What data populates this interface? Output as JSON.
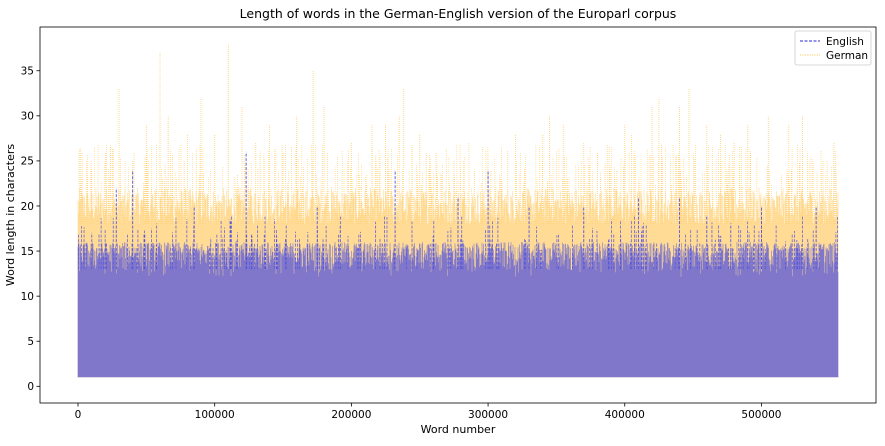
{
  "chart_data": {
    "type": "line",
    "title": "Length of words in the German-English version of the Europarl corpus",
    "xlabel": "Word number",
    "ylabel": "Word length in characters",
    "xlim": [
      -27800,
      583800
    ],
    "ylim": [
      -1.85,
      39.85
    ],
    "xticks": [
      0,
      100000,
      200000,
      300000,
      400000,
      500000
    ],
    "xtick_labels": [
      "0",
      "100000",
      "200000",
      "300000",
      "400000",
      "500000"
    ],
    "yticks": [
      0,
      5,
      10,
      15,
      20,
      25,
      30,
      35
    ],
    "ytick_labels": [
      "0",
      "5",
      "10",
      "15",
      "20",
      "25",
      "30",
      "35"
    ],
    "grid": false,
    "legend_position": "top-right",
    "x_range": [
      0,
      556000
    ],
    "series": [
      {
        "name": "German",
        "color": "#ffd582",
        "style": "dotted",
        "min": 1,
        "dense_band_top": 20,
        "peaks": [
          [
            3000,
            26
          ],
          [
            10000,
            24
          ],
          [
            20000,
            26
          ],
          [
            30000,
            33
          ],
          [
            40000,
            25
          ],
          [
            50000,
            29
          ],
          [
            60000,
            37
          ],
          [
            66000,
            30
          ],
          [
            80000,
            28
          ],
          [
            90000,
            32
          ],
          [
            100000,
            28
          ],
          [
            110000,
            38
          ],
          [
            120000,
            31
          ],
          [
            130000,
            27
          ],
          [
            140000,
            29
          ],
          [
            150000,
            26
          ],
          [
            160000,
            30
          ],
          [
            172000,
            35
          ],
          [
            180000,
            31
          ],
          [
            200000,
            27
          ],
          [
            215000,
            29
          ],
          [
            225000,
            29
          ],
          [
            235000,
            30
          ],
          [
            238000,
            33
          ],
          [
            250000,
            28
          ],
          [
            262000,
            26
          ],
          [
            275000,
            25
          ],
          [
            290000,
            24
          ],
          [
            302000,
            24
          ],
          [
            320000,
            28
          ],
          [
            340000,
            28
          ],
          [
            345000,
            30
          ],
          [
            355000,
            29
          ],
          [
            370000,
            27
          ],
          [
            380000,
            26
          ],
          [
            400000,
            29
          ],
          [
            405000,
            28
          ],
          [
            420000,
            31
          ],
          [
            425000,
            32
          ],
          [
            440000,
            31
          ],
          [
            447000,
            33
          ],
          [
            460000,
            29
          ],
          [
            470000,
            28
          ],
          [
            480000,
            27
          ],
          [
            490000,
            29
          ],
          [
            505000,
            30
          ],
          [
            520000,
            29
          ],
          [
            530000,
            30
          ],
          [
            545000,
            25
          ],
          [
            553000,
            27
          ]
        ]
      },
      {
        "name": "English",
        "color": "#5555dd",
        "style": "dashed",
        "min": 1,
        "dense_band_top": 15,
        "peaks": [
          [
            28000,
            22
          ],
          [
            40000,
            24
          ],
          [
            85000,
            20
          ],
          [
            123000,
            26
          ],
          [
            175000,
            20
          ],
          [
            232000,
            24
          ],
          [
            278000,
            21
          ],
          [
            300000,
            24
          ],
          [
            330000,
            20
          ],
          [
            370000,
            20
          ],
          [
            410000,
            21
          ],
          [
            440000,
            21
          ],
          [
            460000,
            19
          ],
          [
            500000,
            20
          ],
          [
            540000,
            20
          ]
        ]
      }
    ]
  }
}
